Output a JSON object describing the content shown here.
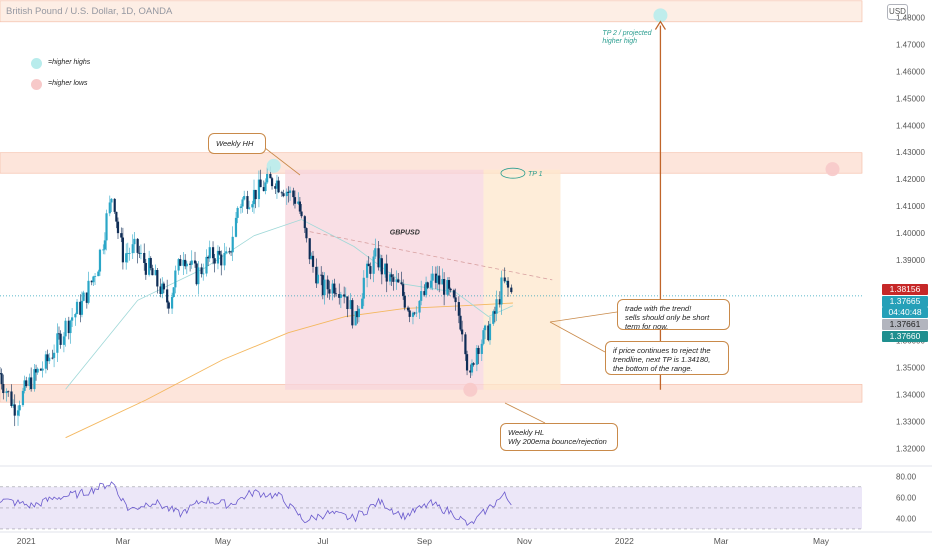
{
  "header": {
    "symbol_title": "British Pound / U.S. Dollar, 1D, OANDA",
    "currency_button": "USD"
  },
  "legend": [
    {
      "label": "=higher highs",
      "color": "#b8ecec"
    },
    {
      "label": "=higher lows",
      "color": "#f7c9c9"
    }
  ],
  "annotations": {
    "weekly_hh": "Weekly HH",
    "gbpusd": "GBPUSD",
    "tp1": "TP 1",
    "tp2_line1": "TP 2 / projected",
    "tp2_line2": "higher high",
    "trade_note": [
      "trade with the trend!",
      "sells should only be short",
      "term for now."
    ],
    "reject_note": [
      "if price continues to reject the",
      "trendline, next TP is 1.34180,",
      "the bottom of the range."
    ],
    "weekly_hl_note": [
      "Weekly HL",
      "Wly 200ema bounce/rejection"
    ]
  },
  "price_labels": [
    {
      "text": "1.38156",
      "color": "#c62828"
    },
    {
      "text": "1.37665",
      "color": "#26a0b8"
    },
    {
      "text": "04:40:48",
      "color": "#26a0b8"
    },
    {
      "text": "1.37661",
      "color": "#b2b5be"
    },
    {
      "text": "1.37660",
      "color": "#1f8f8f"
    }
  ],
  "chart_data": {
    "type": "candlestick",
    "y_axis": {
      "ticks": [
        1.48,
        1.47,
        1.46,
        1.45,
        1.44,
        1.43,
        1.42,
        1.41,
        1.4,
        1.39,
        1.38,
        1.37,
        1.36,
        1.35,
        1.34,
        1.33,
        1.32
      ],
      "tick_labels": [
        "1.48000",
        "1.47000",
        "1.46000",
        "1.45000",
        "1.44000",
        "1.43000",
        "1.42000",
        "1.41000",
        "1.40000",
        "1.39000",
        "1.38000",
        "1.37000",
        "1.36000",
        "1.35000",
        "1.34000",
        "1.33000",
        "1.32000"
      ],
      "range": [
        1.3135,
        1.4865
      ]
    },
    "x_axis": {
      "labels": [
        "2021",
        "Mar",
        "May",
        "Jul",
        "Sep",
        "Nov",
        "2022",
        "Mar",
        "May"
      ],
      "range": [
        "2020-12-16",
        "2022-05-26"
      ]
    },
    "zones": [
      {
        "name": "resistance",
        "y_low": 1.4222,
        "y_high": 1.4298
      },
      {
        "name": "support",
        "y_low": 1.3372,
        "y_high": 1.3438
      },
      {
        "name": "tp2-zone",
        "y_low": 1.4784,
        "y_high": 1.4862
      }
    ],
    "ranges": [
      {
        "name": "range-box",
        "x_start": "2021-06-08",
        "x_end": "2021-10-07",
        "y_low": 1.3418,
        "y_high": 1.4235,
        "color": "#f7d4dc"
      },
      {
        "name": "target-box",
        "x_start": "2021-10-07",
        "x_end": "2021-11-23",
        "y_low": 1.3418,
        "y_high": 1.4235,
        "color": "#fde7cc"
      }
    ],
    "trendline": {
      "x": [
        "2021-06-23",
        "2021-11-18"
      ],
      "y": [
        1.4005,
        1.3826
      ]
    },
    "arrow": {
      "x": "2022-01-23",
      "y_from": 1.3418,
      "y_to": 1.4785
    },
    "markers": [
      {
        "kind": "higher-high",
        "x": "2021-06-01",
        "y": 1.4249
      },
      {
        "kind": "higher-high",
        "x": "2022-01-23",
        "y": 1.4808
      },
      {
        "kind": "higher-low",
        "x": "2021-09-29",
        "y": 1.3418
      },
      {
        "kind": "higher-low",
        "x": "2022-05-08",
        "y": 1.4237
      }
    ],
    "current_price": 1.37665,
    "last_candle_date": "2021-10-25",
    "closes": [
      {
        "x": "2020-12-16",
        "y": 1.348
      },
      {
        "x": "2020-12-25",
        "y": 1.335
      },
      {
        "x": "2021-01-04",
        "y": 1.345
      },
      {
        "x": "2021-01-14",
        "y": 1.352
      },
      {
        "x": "2021-01-26",
        "y": 1.366
      },
      {
        "x": "2021-02-05",
        "y": 1.374
      },
      {
        "x": "2021-02-14",
        "y": 1.388
      },
      {
        "x": "2021-02-23",
        "y": 1.415
      },
      {
        "x": "2021-03-01",
        "y": 1.392
      },
      {
        "x": "2021-03-09",
        "y": 1.394
      },
      {
        "x": "2021-03-19",
        "y": 1.385
      },
      {
        "x": "2021-03-29",
        "y": 1.374
      },
      {
        "x": "2021-04-07",
        "y": 1.393
      },
      {
        "x": "2021-04-15",
        "y": 1.384
      },
      {
        "x": "2021-04-25",
        "y": 1.392
      },
      {
        "x": "2021-05-05",
        "y": 1.39
      },
      {
        "x": "2021-05-11",
        "y": 1.411
      },
      {
        "x": "2021-05-19",
        "y": 1.414
      },
      {
        "x": "2021-05-28",
        "y": 1.418
      },
      {
        "x": "2021-06-02",
        "y": 1.42
      },
      {
        "x": "2021-06-09",
        "y": 1.416
      },
      {
        "x": "2021-06-16",
        "y": 1.412
      },
      {
        "x": "2021-06-23",
        "y": 1.392
      },
      {
        "x": "2021-07-01",
        "y": 1.379
      },
      {
        "x": "2021-07-09",
        "y": 1.381
      },
      {
        "x": "2021-07-15",
        "y": 1.378
      },
      {
        "x": "2021-07-21",
        "y": 1.367
      },
      {
        "x": "2021-07-27",
        "y": 1.384
      },
      {
        "x": "2021-08-03",
        "y": 1.391
      },
      {
        "x": "2021-08-10",
        "y": 1.383
      },
      {
        "x": "2021-08-17",
        "y": 1.38
      },
      {
        "x": "2021-08-24",
        "y": 1.371
      },
      {
        "x": "2021-08-31",
        "y": 1.376
      },
      {
        "x": "2021-09-07",
        "y": 1.383
      },
      {
        "x": "2021-09-13",
        "y": 1.381
      },
      {
        "x": "2021-09-19",
        "y": 1.374
      },
      {
        "x": "2021-09-25",
        "y": 1.365
      },
      {
        "x": "2021-09-29",
        "y": 1.345
      },
      {
        "x": "2021-10-03",
        "y": 1.358
      },
      {
        "x": "2021-10-09",
        "y": 1.362
      },
      {
        "x": "2021-10-14",
        "y": 1.369
      },
      {
        "x": "2021-10-19",
        "y": 1.381
      },
      {
        "x": "2021-10-22",
        "y": 1.38
      },
      {
        "x": "2021-10-25",
        "y": 1.3766
      }
    ],
    "ema_fast": [
      {
        "x": "2021-01-25",
        "y": 1.342
      },
      {
        "x": "2021-03-10",
        "y": 1.375
      },
      {
        "x": "2021-04-20",
        "y": 1.387
      },
      {
        "x": "2021-05-20",
        "y": 1.399
      },
      {
        "x": "2021-06-18",
        "y": 1.405
      },
      {
        "x": "2021-07-20",
        "y": 1.395
      },
      {
        "x": "2021-08-20",
        "y": 1.381
      },
      {
        "x": "2021-09-20",
        "y": 1.378
      },
      {
        "x": "2021-10-10",
        "y": 1.369
      },
      {
        "x": "2021-10-25",
        "y": 1.373
      }
    ],
    "ema_200": [
      {
        "x": "2021-01-25",
        "y": 1.324
      },
      {
        "x": "2021-03-15",
        "y": 1.338
      },
      {
        "x": "2021-05-01",
        "y": 1.353
      },
      {
        "x": "2021-06-10",
        "y": 1.363
      },
      {
        "x": "2021-07-15",
        "y": 1.369
      },
      {
        "x": "2021-08-20",
        "y": 1.372
      },
      {
        "x": "2021-09-25",
        "y": 1.373
      },
      {
        "x": "2021-10-25",
        "y": 1.374
      }
    ],
    "rsi": {
      "ticks": [
        80,
        60,
        40
      ],
      "tick_labels": [
        "80.00",
        "60.00",
        "40.00"
      ],
      "range": [
        29,
        86
      ],
      "band": [
        30,
        70
      ],
      "mid": 50,
      "values": [
        {
          "x": "2020-12-16",
          "y": 58
        },
        {
          "x": "2021-01-05",
          "y": 52
        },
        {
          "x": "2021-01-20",
          "y": 60
        },
        {
          "x": "2021-02-05",
          "y": 64
        },
        {
          "x": "2021-02-23",
          "y": 74
        },
        {
          "x": "2021-03-05",
          "y": 48
        },
        {
          "x": "2021-03-20",
          "y": 56
        },
        {
          "x": "2021-04-05",
          "y": 44
        },
        {
          "x": "2021-04-20",
          "y": 58
        },
        {
          "x": "2021-05-05",
          "y": 53
        },
        {
          "x": "2021-05-20",
          "y": 65
        },
        {
          "x": "2021-06-05",
          "y": 61
        },
        {
          "x": "2021-06-20",
          "y": 38
        },
        {
          "x": "2021-07-05",
          "y": 45
        },
        {
          "x": "2021-07-20",
          "y": 40
        },
        {
          "x": "2021-08-05",
          "y": 56
        },
        {
          "x": "2021-08-20",
          "y": 42
        },
        {
          "x": "2021-09-05",
          "y": 54
        },
        {
          "x": "2021-09-20",
          "y": 44
        },
        {
          "x": "2021-09-29",
          "y": 33
        },
        {
          "x": "2021-10-10",
          "y": 49
        },
        {
          "x": "2021-10-20",
          "y": 62
        },
        {
          "x": "2021-10-25",
          "y": 55
        }
      ]
    }
  }
}
